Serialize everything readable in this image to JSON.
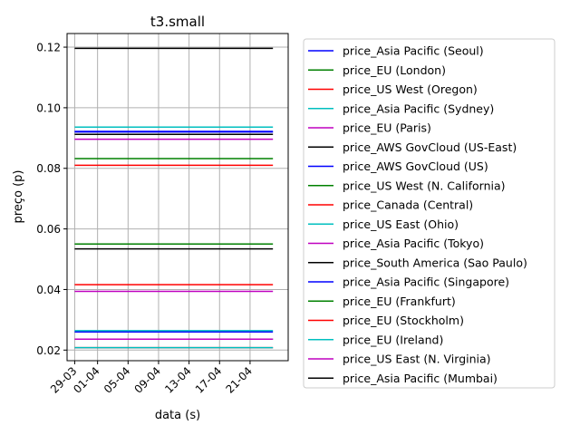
{
  "chart_data": {
    "type": "line",
    "title": "t3.small",
    "xlabel": "data (s)",
    "ylabel": "preço (p)",
    "x_ticks": [
      "29-03",
      "01-04",
      "05-04",
      "09-04",
      "13-04",
      "17-04",
      "21-04"
    ],
    "x_range": [
      "29-03",
      "24-04"
    ],
    "xlim": [
      "28-03",
      "26-04"
    ],
    "yticks": [
      "0.02",
      "0.04",
      "0.06",
      "0.08",
      "0.10",
      "0.12"
    ],
    "ylim": [
      0.0165,
      0.1245
    ],
    "grid": true,
    "legend_position": "outside-right",
    "series": [
      {
        "name": "price_Asia Pacific (Seoul)",
        "color": "#0000ff",
        "value": 0.026
      },
      {
        "name": "price_EU (London)",
        "color": "#008000",
        "value": 0.0236
      },
      {
        "name": "price_US West (Oregon)",
        "color": "#ff0000",
        "value": 0.0208
      },
      {
        "name": "price_Asia Pacific (Sydney)",
        "color": "#00bfbf",
        "value": 0.0264
      },
      {
        "name": "price_EU (Paris)",
        "color": "#bf00bf",
        "value": 0.0236
      },
      {
        "name": "price_AWS GovCloud (US-East)",
        "color": "#000000",
        "value": 0.0912
      },
      {
        "name": "price_AWS GovCloud (US)",
        "color": "#0000ff",
        "value": 0.092
      },
      {
        "name": "price_US West (N. California)",
        "color": "#008000",
        "value": 0.0832
      },
      {
        "name": "price_Canada (Central)",
        "color": "#ff0000",
        "value": 0.081
      },
      {
        "name": "price_US East (Ohio)",
        "color": "#00bfbf",
        "value": 0.0208
      },
      {
        "name": "price_Asia Pacific (Tokyo)",
        "color": "#bf00bf",
        "value": 0.0896
      },
      {
        "name": "price_South America (Sao Paulo)",
        "color": "#000000",
        "value": 0.1196
      },
      {
        "name": "price_Asia Pacific (Singapore)",
        "color": "#0000ff",
        "value": 0.0922
      },
      {
        "name": "price_EU (Frankfurt)",
        "color": "#008000",
        "value": 0.055
      },
      {
        "name": "price_EU (Stockholm)",
        "color": "#ff0000",
        "value": 0.0416
      },
      {
        "name": "price_EU (Ireland)",
        "color": "#00bfbf",
        "value": 0.0936
      },
      {
        "name": "price_US East (N. Virginia)",
        "color": "#bf00bf",
        "value": 0.0394
      },
      {
        "name": "price_Asia Pacific (Mumbai)",
        "color": "#000000",
        "value": 0.0534
      }
    ]
  }
}
